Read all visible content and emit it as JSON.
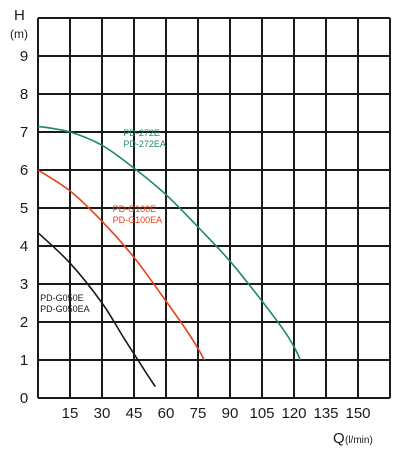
{
  "chart_data": {
    "type": "line",
    "title": "",
    "xlabel": "Q",
    "xlabel_unit": "(l/min)",
    "ylabel": "H",
    "ylabel_unit": "(m)",
    "xlim": [
      0,
      165
    ],
    "ylim": [
      0,
      10
    ],
    "x_ticks": [
      15,
      30,
      45,
      60,
      75,
      90,
      105,
      120,
      135,
      150
    ],
    "y_ticks": [
      0,
      1,
      2,
      3,
      4,
      5,
      6,
      7,
      8,
      9
    ],
    "grid": true,
    "series": [
      {
        "lines": [
          "PD-272E",
          "PD-272EA"
        ],
        "color": "#1f8a5f",
        "label_at": [
          40,
          6.9
        ],
        "x": [
          0,
          15,
          30,
          45,
          60,
          75,
          90,
          105,
          115,
          120,
          123
        ],
        "y": [
          7.15,
          7.0,
          6.65,
          6.05,
          5.35,
          4.5,
          3.6,
          2.55,
          1.8,
          1.35,
          1.0
        ]
      },
      {
        "lines": [
          "PD-G100E",
          "PD-G100EA"
        ],
        "color": "#e8401c",
        "label_at": [
          35,
          4.9
        ],
        "x": [
          0,
          15,
          30,
          45,
          60,
          70,
          75,
          78
        ],
        "y": [
          6.0,
          5.45,
          4.65,
          3.7,
          2.55,
          1.75,
          1.3,
          1.0
        ]
      },
      {
        "lines": [
          "PD-G050E",
          "PD-G050EA"
        ],
        "color": "#1a1a1a",
        "label_at": [
          1,
          2.55
        ],
        "x": [
          0,
          15,
          30,
          40,
          48,
          52,
          55
        ],
        "y": [
          4.35,
          3.55,
          2.5,
          1.6,
          0.9,
          0.55,
          0.3
        ]
      }
    ]
  }
}
